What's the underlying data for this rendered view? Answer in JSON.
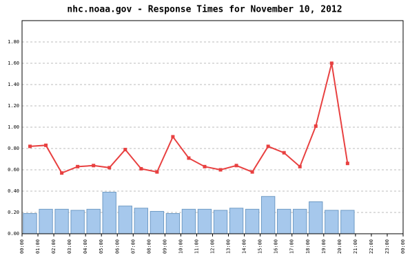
{
  "chart_data": {
    "type": "bar_line",
    "title": "nhc.noaa.gov - Response Times for November 10, 2012",
    "xlim": [
      0,
      24
    ],
    "xticks": [
      {
        "value": 0,
        "label": "00:00"
      },
      {
        "value": 1,
        "label": "01:00"
      },
      {
        "value": 2,
        "label": "02:00"
      },
      {
        "value": 3,
        "label": "03:00"
      },
      {
        "value": 4,
        "label": "04:00"
      },
      {
        "value": 5,
        "label": "05:00"
      },
      {
        "value": 6,
        "label": "06:00"
      },
      {
        "value": 7,
        "label": "07:00"
      },
      {
        "value": 8,
        "label": "08:00"
      },
      {
        "value": 9,
        "label": "09:00"
      },
      {
        "value": 10,
        "label": "10:00"
      },
      {
        "value": 11,
        "label": "11:00"
      },
      {
        "value": 12,
        "label": "12:00"
      },
      {
        "value": 13,
        "label": "13:00"
      },
      {
        "value": 14,
        "label": "14:00"
      },
      {
        "value": 15,
        "label": "15:00"
      },
      {
        "value": 16,
        "label": "16:00"
      },
      {
        "value": 17,
        "label": "17:00"
      },
      {
        "value": 18,
        "label": "18:00"
      },
      {
        "value": 19,
        "label": "19:00"
      },
      {
        "value": 20,
        "label": "20:00"
      },
      {
        "value": 21,
        "label": "21:00"
      },
      {
        "value": 22,
        "label": "22:00"
      },
      {
        "value": 23,
        "label": "23:00"
      },
      {
        "value": 24,
        "label": "00:00"
      }
    ],
    "ylim": [
      0,
      2
    ],
    "yticks": [
      {
        "value": 0,
        "label": "0.00"
      },
      {
        "value": 0.2,
        "label": "0.20"
      },
      {
        "value": 0.4,
        "label": "0.40"
      },
      {
        "value": 0.6,
        "label": "0.60"
      },
      {
        "value": 0.8,
        "label": "0.80"
      },
      {
        "value": 1,
        "label": "1.00"
      },
      {
        "value": 1.2,
        "label": "1.20"
      },
      {
        "value": 1.4,
        "label": "1.40"
      },
      {
        "value": 1.6,
        "label": "1.60"
      },
      {
        "value": 1.8,
        "label": "1.80"
      }
    ],
    "grid": true,
    "x": [
      0,
      1,
      2,
      3,
      4,
      5,
      6,
      7,
      8,
      9,
      10,
      11,
      12,
      13,
      14,
      15,
      16,
      17,
      18,
      19,
      20
    ],
    "series": [
      {
        "kind": "bar",
        "color": "#a6c8ec",
        "edge": "#6e9ac4",
        "values": [
          0.19,
          0.23,
          0.23,
          0.22,
          0.23,
          0.39,
          0.26,
          0.24,
          0.21,
          0.19,
          0.23,
          0.23,
          0.22,
          0.24,
          0.23,
          0.35,
          0.23,
          0.23,
          0.3,
          0.22,
          0.22
        ]
      },
      {
        "kind": "line",
        "color": "#e84040",
        "values": [
          0.82,
          0.83,
          0.57,
          0.63,
          0.64,
          0.62,
          0.79,
          0.61,
          0.58,
          0.91,
          0.71,
          0.63,
          0.6,
          0.64,
          0.58,
          0.82,
          0.76,
          0.63,
          1.01,
          1.6,
          0.66
        ]
      }
    ]
  }
}
